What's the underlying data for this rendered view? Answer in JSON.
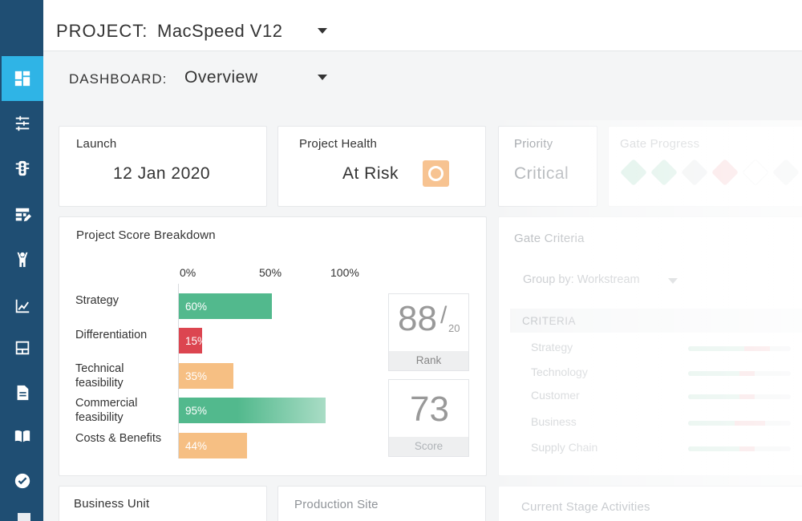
{
  "sidebar": {
    "items": [
      {
        "icon": "dashboard-icon",
        "active": true
      },
      {
        "icon": "workstreams-icon",
        "active": false
      },
      {
        "icon": "traffic-light-icon",
        "active": false
      },
      {
        "icon": "table-edit-icon",
        "active": false
      },
      {
        "icon": "person-icon",
        "active": false
      },
      {
        "icon": "line-chart-icon",
        "active": false
      },
      {
        "icon": "layout-icon",
        "active": false
      },
      {
        "icon": "document-icon",
        "active": false
      },
      {
        "icon": "book-icon",
        "active": false
      },
      {
        "icon": "check-circle-icon",
        "active": false
      }
    ]
  },
  "header": {
    "project_label": "PROJECT:",
    "project_name": "MacSpeed V12"
  },
  "dashboard": {
    "label": "DASHBOARD:",
    "value": "Overview"
  },
  "launch": {
    "title": "Launch",
    "value": "12 Jan 2020"
  },
  "health": {
    "title": "Project Health",
    "value": "At Risk",
    "color": "#f7c391"
  },
  "priority": {
    "title": "Priority",
    "value": "Critical"
  },
  "gate_progress": {
    "title": "Gate Progress",
    "gates": [
      {
        "status": "complete",
        "color": "#d5ede3"
      },
      {
        "status": "complete",
        "color": "#d5ede3"
      },
      {
        "status": "pending",
        "color": "#eceeef"
      },
      {
        "status": "at-risk",
        "color": "#f7d6d8"
      },
      {
        "status": "empty",
        "color": "#ffffff"
      },
      {
        "status": "pending",
        "color": "#eceeef"
      }
    ]
  },
  "score_breakdown": {
    "title": "Project Score Breakdown",
    "axis_ticks": [
      "0%",
      "50%",
      "100%"
    ],
    "rank": {
      "value": "88",
      "suffix": "/",
      "total": "20",
      "label": "Rank"
    },
    "score": {
      "value": "73",
      "label": "Score"
    }
  },
  "chart_data": {
    "type": "bar",
    "orientation": "horizontal",
    "categories": [
      "Strategy",
      "Differentiation",
      "Technical feasibility",
      "Commercial feasibility",
      "Costs & Benefits"
    ],
    "values": [
      60,
      15,
      35,
      95,
      44
    ],
    "value_labels": [
      "60%",
      "15%",
      "35%",
      "95%",
      "44%"
    ],
    "colors": [
      "#52b98d",
      "#dc4550",
      "#f6bf83",
      "#52b98d",
      "#f6bf83"
    ],
    "xlim": [
      0,
      100
    ],
    "title": "Project Score Breakdown"
  },
  "gate_criteria": {
    "title": "Gate Criteria",
    "group_by": "Group by: Workstream",
    "header": "CRITERIA",
    "rows": [
      {
        "label": "Strategy",
        "green": 0.55,
        "red": 0.25
      },
      {
        "label": "Technology",
        "green": 0.5,
        "red": 0.15
      },
      {
        "label": "Customer",
        "green": 0.5,
        "red": 0.15
      },
      {
        "label": "Business",
        "green": 0.45,
        "red": 0.3
      },
      {
        "label": "Supply Chain",
        "green": 0.5,
        "red": 0.15
      }
    ]
  },
  "business_unit": {
    "title": "Business Unit"
  },
  "production_site": {
    "title": "Production Site"
  },
  "current_stage": {
    "title": "Current Stage Activities"
  }
}
